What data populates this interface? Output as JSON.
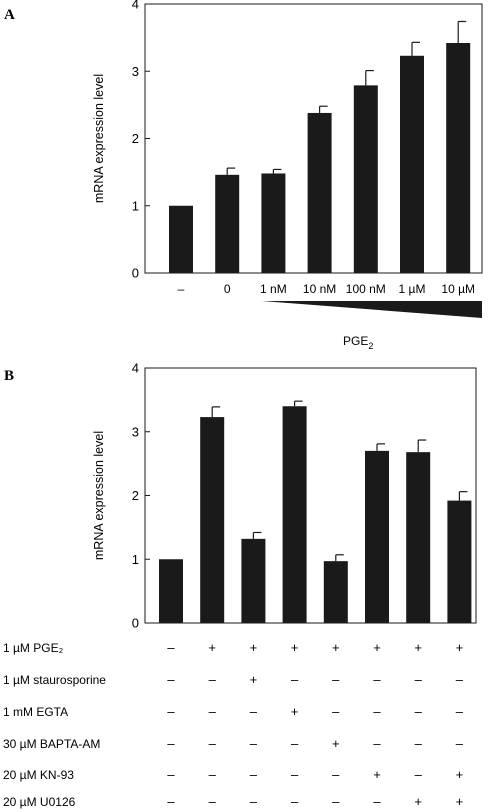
{
  "chart_data": [
    {
      "panel": "A",
      "type": "bar",
      "ylabel": "mRNA expression level",
      "ylim": [
        0,
        4
      ],
      "yticks": [
        "0",
        "1",
        "2",
        "3",
        "4"
      ],
      "categories": [
        "–",
        "0",
        "1 nM",
        "10 nM",
        "100 nM",
        "1 µM",
        "10 µM"
      ],
      "values": [
        1.0,
        1.46,
        1.48,
        2.38,
        2.79,
        3.23,
        3.42
      ],
      "errors": [
        0.0,
        0.1,
        0.06,
        0.1,
        0.22,
        0.2,
        0.32
      ],
      "gradient_label": {
        "base": "PGE",
        "sub": "2"
      },
      "bar_color": "#1a1a1a"
    },
    {
      "panel": "B",
      "type": "bar",
      "ylabel": "mRNA expression level",
      "ylim": [
        0,
        4
      ],
      "yticks": [
        "0",
        "1",
        "2",
        "3",
        "4"
      ],
      "values": [
        1.0,
        3.23,
        1.32,
        3.4,
        0.97,
        2.7,
        2.68,
        1.92
      ],
      "errors": [
        0.0,
        0.16,
        0.1,
        0.08,
        0.1,
        0.11,
        0.19,
        0.14
      ],
      "treatments": [
        {
          "label": "1 µM PGE₂",
          "signs": [
            "–",
            "+",
            "+",
            "+",
            "+",
            "+",
            "+",
            "+"
          ]
        },
        {
          "label": "1 µM staurosporine",
          "signs": [
            "–",
            "–",
            "+",
            "–",
            "–",
            "–",
            "–",
            "–"
          ]
        },
        {
          "label": "1 mM EGTA",
          "signs": [
            "–",
            "–",
            "–",
            "+",
            "–",
            "–",
            "–",
            "–"
          ]
        },
        {
          "label": "30 µM BAPTA-AM",
          "signs": [
            "–",
            "–",
            "–",
            "–",
            "+",
            "–",
            "–",
            "–"
          ]
        },
        {
          "label": "20 µM KN-93",
          "signs": [
            "–",
            "–",
            "–",
            "–",
            "–",
            "+",
            "–",
            "+"
          ]
        },
        {
          "label": "20 µM U0126",
          "signs": [
            "–",
            "–",
            "–",
            "–",
            "–",
            "–",
            "+",
            "+"
          ]
        }
      ],
      "bar_color": "#1a1a1a"
    }
  ]
}
